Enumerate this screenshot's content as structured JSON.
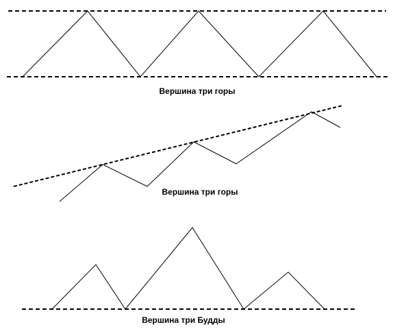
{
  "panels": [
    {
      "caption": "Вершина три горы"
    },
    {
      "caption": "Вершина три горы"
    },
    {
      "caption": "Вершина три Будды"
    }
  ]
}
